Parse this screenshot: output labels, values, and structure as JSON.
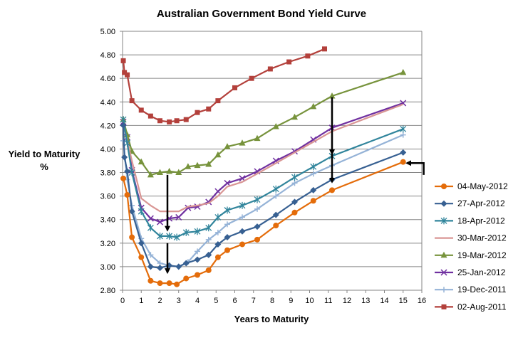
{
  "chart_data": {
    "type": "line",
    "title": "Australian Government Bond Yield Curve",
    "xlabel": "Years to Maturity",
    "ylabel": "Yield to Maturity\n%",
    "xlim": [
      0,
      16
    ],
    "ylim": [
      2.8,
      5.0
    ],
    "x_ticks": [
      0,
      1,
      2,
      3,
      4,
      5,
      6,
      7,
      8,
      9,
      10,
      11,
      12,
      13,
      14,
      15,
      16
    ],
    "y_ticks": [
      "2.80",
      "3.00",
      "3.20",
      "3.40",
      "3.60",
      "3.80",
      "4.00",
      "4.20",
      "4.40",
      "4.60",
      "4.80",
      "5.00"
    ],
    "y_tick_values": [
      2.8,
      3.0,
      3.2,
      3.4,
      3.6,
      3.8,
      4.0,
      4.2,
      4.4,
      4.6,
      4.8,
      5.0
    ],
    "grid": "horizontal",
    "legend_position": "right",
    "series": [
      {
        "name": "04-May-2012",
        "color": "#E46C0A",
        "marker": "circle",
        "points": [
          [
            0.04,
            3.75
          ],
          [
            0.25,
            3.61
          ],
          [
            0.5,
            3.25
          ],
          [
            1.0,
            3.08
          ],
          [
            1.5,
            2.88
          ],
          [
            2.0,
            2.86
          ],
          [
            2.5,
            2.86
          ],
          [
            2.9,
            2.85
          ],
          [
            3.4,
            2.9
          ],
          [
            4.0,
            2.93
          ],
          [
            4.6,
            2.97
          ],
          [
            5.1,
            3.08
          ],
          [
            5.6,
            3.14
          ],
          [
            6.4,
            3.19
          ],
          [
            7.2,
            3.23
          ],
          [
            8.2,
            3.35
          ],
          [
            9.2,
            3.46
          ],
          [
            10.2,
            3.56
          ],
          [
            11.2,
            3.65
          ],
          [
            15.0,
            3.89
          ]
        ]
      },
      {
        "name": "27-Apr-2012",
        "color": "#376092",
        "marker": "diamond",
        "points": [
          [
            0.04,
            4.2
          ],
          [
            0.1,
            3.93
          ],
          [
            0.25,
            3.81
          ],
          [
            0.5,
            3.47
          ],
          [
            1.0,
            3.2
          ],
          [
            1.5,
            3.0
          ],
          [
            2.0,
            2.99
          ],
          [
            2.5,
            3.01
          ],
          [
            3.0,
            3.0
          ],
          [
            3.4,
            3.03
          ],
          [
            4.0,
            3.06
          ],
          [
            4.6,
            3.1
          ],
          [
            5.1,
            3.19
          ],
          [
            5.6,
            3.25
          ],
          [
            6.4,
            3.3
          ],
          [
            7.2,
            3.34
          ],
          [
            8.2,
            3.44
          ],
          [
            9.2,
            3.55
          ],
          [
            10.2,
            3.65
          ],
          [
            11.2,
            3.74
          ],
          [
            15.0,
            3.97
          ]
        ]
      },
      {
        "name": "18-Apr-2012",
        "color": "#31859C",
        "marker": "star",
        "points": [
          [
            0.04,
            4.25
          ],
          [
            0.25,
            4.05
          ],
          [
            0.5,
            3.8
          ],
          [
            1.0,
            3.47
          ],
          [
            1.5,
            3.33
          ],
          [
            2.0,
            3.26
          ],
          [
            2.5,
            3.26
          ],
          [
            2.9,
            3.25
          ],
          [
            3.4,
            3.29
          ],
          [
            4.0,
            3.3
          ],
          [
            4.6,
            3.33
          ],
          [
            5.1,
            3.42
          ],
          [
            5.6,
            3.48
          ],
          [
            6.4,
            3.52
          ],
          [
            7.2,
            3.57
          ],
          [
            8.2,
            3.66
          ],
          [
            9.2,
            3.76
          ],
          [
            10.2,
            3.85
          ],
          [
            11.2,
            3.94
          ],
          [
            15.0,
            4.17
          ]
        ]
      },
      {
        "name": "30-Mar-2012",
        "color": "#D99694",
        "marker": "none",
        "points": [
          [
            0.04,
            4.22
          ],
          [
            0.25,
            4.07
          ],
          [
            0.5,
            3.9
          ],
          [
            1.0,
            3.58
          ],
          [
            1.5,
            3.52
          ],
          [
            2.0,
            3.47
          ],
          [
            2.5,
            3.47
          ],
          [
            3.0,
            3.47
          ],
          [
            3.5,
            3.51
          ],
          [
            4.0,
            3.52
          ],
          [
            4.6,
            3.54
          ],
          [
            5.1,
            3.6
          ],
          [
            5.6,
            3.68
          ],
          [
            6.4,
            3.72
          ],
          [
            7.2,
            3.79
          ],
          [
            8.2,
            3.88
          ],
          [
            9.2,
            3.97
          ],
          [
            10.2,
            4.06
          ],
          [
            11.2,
            4.15
          ],
          [
            15.0,
            4.38
          ]
        ]
      },
      {
        "name": "19-Mar-2012",
        "color": "#77933C",
        "marker": "triangle",
        "points": [
          [
            0.04,
            4.25
          ],
          [
            0.25,
            4.12
          ],
          [
            0.5,
            3.98
          ],
          [
            1.0,
            3.89
          ],
          [
            1.5,
            3.78
          ],
          [
            2.0,
            3.8
          ],
          [
            2.5,
            3.81
          ],
          [
            3.0,
            3.8
          ],
          [
            3.5,
            3.85
          ],
          [
            4.0,
            3.86
          ],
          [
            4.6,
            3.87
          ],
          [
            5.1,
            3.95
          ],
          [
            5.6,
            4.02
          ],
          [
            6.4,
            4.05
          ],
          [
            7.2,
            4.09
          ],
          [
            8.2,
            4.19
          ],
          [
            9.2,
            4.27
          ],
          [
            10.2,
            4.36
          ],
          [
            11.2,
            4.45
          ],
          [
            15.0,
            4.65
          ]
        ]
      },
      {
        "name": "25-Jan-2012",
        "color": "#7030A0",
        "marker": "x",
        "points": [
          [
            0.04,
            4.23
          ],
          [
            0.25,
            4.1
          ],
          [
            0.5,
            3.82
          ],
          [
            1.0,
            3.5
          ],
          [
            1.5,
            3.41
          ],
          [
            2.0,
            3.38
          ],
          [
            2.5,
            3.41
          ],
          [
            3.0,
            3.42
          ],
          [
            3.5,
            3.5
          ],
          [
            4.0,
            3.51
          ],
          [
            4.6,
            3.55
          ],
          [
            5.1,
            3.64
          ],
          [
            5.6,
            3.71
          ],
          [
            6.4,
            3.75
          ],
          [
            7.2,
            3.81
          ],
          [
            8.2,
            3.9
          ],
          [
            9.2,
            3.98
          ],
          [
            10.2,
            4.08
          ],
          [
            11.2,
            4.18
          ],
          [
            15.0,
            4.39
          ]
        ]
      },
      {
        "name": "19-Dec-2011",
        "color": "#95B3D7",
        "marker": "plus",
        "points": [
          [
            0.04,
            4.07
          ],
          [
            0.25,
            3.74
          ],
          [
            0.5,
            3.52
          ],
          [
            1.0,
            3.24
          ],
          [
            1.5,
            3.1
          ],
          [
            2.0,
            3.03
          ],
          [
            2.5,
            3.01
          ],
          [
            3.0,
            3.0
          ],
          [
            3.5,
            3.04
          ],
          [
            4.0,
            3.13
          ],
          [
            4.6,
            3.23
          ],
          [
            5.1,
            3.29
          ],
          [
            5.6,
            3.36
          ],
          [
            6.4,
            3.42
          ],
          [
            7.2,
            3.49
          ],
          [
            8.2,
            3.6
          ],
          [
            9.2,
            3.71
          ],
          [
            10.2,
            3.79
          ],
          [
            11.2,
            3.86
          ],
          [
            15.0,
            4.12
          ]
        ]
      },
      {
        "name": "02-Aug-2011",
        "color": "#B3403B",
        "marker": "square",
        "points": [
          [
            0.04,
            4.75
          ],
          [
            0.1,
            4.65
          ],
          [
            0.25,
            4.63
          ],
          [
            0.5,
            4.41
          ],
          [
            1.0,
            4.33
          ],
          [
            1.5,
            4.28
          ],
          [
            2.0,
            4.24
          ],
          [
            2.5,
            4.23
          ],
          [
            2.9,
            4.24
          ],
          [
            3.4,
            4.25
          ],
          [
            4.0,
            4.31
          ],
          [
            4.6,
            4.34
          ],
          [
            5.1,
            4.41
          ],
          [
            6.0,
            4.52
          ],
          [
            6.9,
            4.6
          ],
          [
            7.9,
            4.68
          ],
          [
            8.9,
            4.74
          ],
          [
            9.9,
            4.79
          ],
          [
            10.8,
            4.85
          ]
        ]
      }
    ],
    "annotations": [
      {
        "type": "arrow",
        "from": [
          2.4,
          3.78
        ],
        "to": [
          2.4,
          3.31
        ]
      },
      {
        "type": "arrow",
        "from": [
          2.4,
          3.2
        ],
        "to": [
          2.4,
          2.95
        ]
      },
      {
        "type": "arrow",
        "from": [
          11.2,
          4.44
        ],
        "to": [
          11.2,
          3.96
        ]
      },
      {
        "type": "arrow",
        "from": [
          11.2,
          3.96
        ],
        "to": [
          11.2,
          3.72
        ]
      },
      {
        "type": "arrow",
        "from": [
          16.1,
          3.78
        ],
        "to": [
          15.2,
          3.88
        ],
        "note": "elbow arrow from legend to the 04-May-2012 series end"
      }
    ]
  }
}
